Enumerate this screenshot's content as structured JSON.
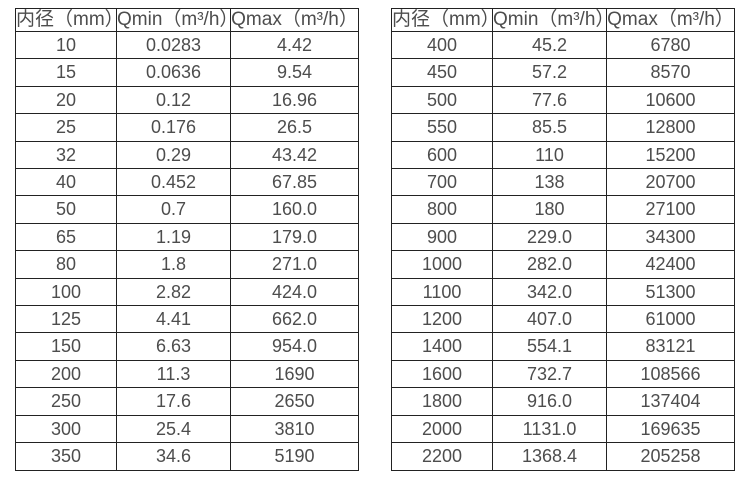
{
  "page": {
    "background": "#ffffff"
  },
  "colors": {
    "border": "#222222",
    "text": "#4d4d4d"
  },
  "tables": [
    {
      "name": "flow-table-dn10-350",
      "headers": [
        "内径（mm）",
        "Qmin（m³/h）",
        "Qmax（m³/h）"
      ],
      "columns": [
        "diameter",
        "qmin",
        "qmax"
      ],
      "rows": [
        [
          "10",
          "0.0283",
          "4.42"
        ],
        [
          "15",
          "0.0636",
          "9.54"
        ],
        [
          "20",
          "0.12",
          "16.96"
        ],
        [
          "25",
          "0.176",
          "26.5"
        ],
        [
          "32",
          "0.29",
          "43.42"
        ],
        [
          "40",
          "0.452",
          "67.85"
        ],
        [
          "50",
          "0.7",
          "160.0"
        ],
        [
          "65",
          "1.19",
          "179.0"
        ],
        [
          "80",
          "1.8",
          "271.0"
        ],
        [
          "100",
          "2.82",
          "424.0"
        ],
        [
          "125",
          "4.41",
          "662.0"
        ],
        [
          "150",
          "6.63",
          "954.0"
        ],
        [
          "200",
          "11.3",
          "1690"
        ],
        [
          "250",
          "17.6",
          "2650"
        ],
        [
          "300",
          "25.4",
          "3810"
        ],
        [
          "350",
          "34.6",
          "5190"
        ]
      ]
    },
    {
      "name": "flow-table-dn400-2200",
      "headers": [
        "内径（mm）",
        "Qmin（m³/h）",
        "Qmax（m³/h）"
      ],
      "columns": [
        "diameter",
        "qmin",
        "qmax"
      ],
      "rows": [
        [
          "400",
          "45.2",
          "6780"
        ],
        [
          "450",
          "57.2",
          "8570"
        ],
        [
          "500",
          "77.6",
          "10600"
        ],
        [
          "550",
          "85.5",
          "12800"
        ],
        [
          "600",
          "110",
          "15200"
        ],
        [
          "700",
          "138",
          "20700"
        ],
        [
          "800",
          "180",
          "27100"
        ],
        [
          "900",
          "229.0",
          "34300"
        ],
        [
          "1000",
          "282.0",
          "42400"
        ],
        [
          "1100",
          "342.0",
          "51300"
        ],
        [
          "1200",
          "407.0",
          "61000"
        ],
        [
          "1400",
          "554.1",
          "83121"
        ],
        [
          "1600",
          "732.7",
          "108566"
        ],
        [
          "1800",
          "916.0",
          "137404"
        ],
        [
          "2000",
          "1131.0",
          "169635"
        ],
        [
          "2200",
          "1368.4",
          "205258"
        ]
      ]
    }
  ]
}
